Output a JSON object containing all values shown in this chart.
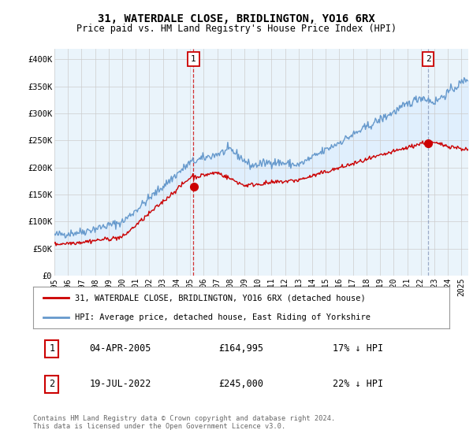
{
  "title": "31, WATERDALE CLOSE, BRIDLINGTON, YO16 6RX",
  "subtitle": "Price paid vs. HM Land Registry's House Price Index (HPI)",
  "title_fontsize": 10,
  "subtitle_fontsize": 8.5,
  "ylim": [
    0,
    420000
  ],
  "yticks": [
    0,
    50000,
    100000,
    150000,
    200000,
    250000,
    300000,
    350000,
    400000
  ],
  "ytick_labels": [
    "£0",
    "£50K",
    "£100K",
    "£150K",
    "£200K",
    "£250K",
    "£300K",
    "£350K",
    "£400K"
  ],
  "xlim_start": 1995.0,
  "xlim_end": 2025.5,
  "red_color": "#cc0000",
  "blue_color": "#6699cc",
  "fill_color": "#ddeeff",
  "marker1_x": 2005.25,
  "marker1_y": 164995,
  "marker2_x": 2022.54,
  "marker2_y": 245000,
  "legend_line1": "31, WATERDALE CLOSE, BRIDLINGTON, YO16 6RX (detached house)",
  "legend_line2": "HPI: Average price, detached house, East Riding of Yorkshire",
  "table_row1": [
    "1",
    "04-APR-2005",
    "£164,995",
    "17% ↓ HPI"
  ],
  "table_row2": [
    "2",
    "19-JUL-2022",
    "£245,000",
    "22% ↓ HPI"
  ],
  "footnote": "Contains HM Land Registry data © Crown copyright and database right 2024.\nThis data is licensed under the Open Government Licence v3.0.",
  "bg_color": "#ffffff",
  "grid_color": "#cccccc",
  "plot_bg": "#eaf4fb"
}
